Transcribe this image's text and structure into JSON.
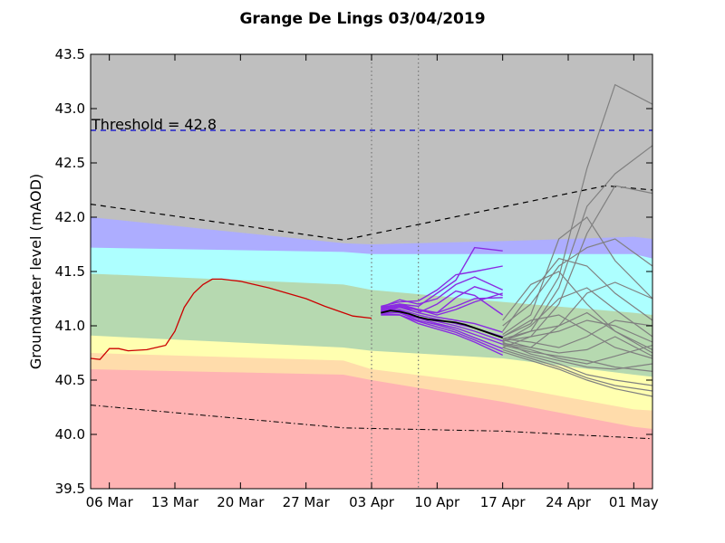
{
  "chart_data": {
    "type": "line",
    "title": "Grange De Lings 03/04/2019",
    "ylabel": "Groundwater level (mAOD)",
    "xlabel": "",
    "ylim": [
      39.5,
      43.5
    ],
    "xlim": [
      "2019-03-04",
      "2019-05-03"
    ],
    "yticks": [
      "39.5",
      "40.0",
      "40.5",
      "41.0",
      "41.5",
      "42.0",
      "42.5",
      "43.0",
      "43.5"
    ],
    "xticks": [
      {
        "date": "2019-03-06",
        "label": "06 Mar"
      },
      {
        "date": "2019-03-13",
        "label": "13 Mar"
      },
      {
        "date": "2019-03-20",
        "label": "20 Mar"
      },
      {
        "date": "2019-03-27",
        "label": "27 Mar"
      },
      {
        "date": "2019-04-03",
        "label": "03 Apr"
      },
      {
        "date": "2019-04-10",
        "label": "10 Apr"
      },
      {
        "date": "2019-04-17",
        "label": "17 Apr"
      },
      {
        "date": "2019-04-24",
        "label": "24 Apr"
      },
      {
        "date": "2019-05-01",
        "label": "01 May"
      }
    ],
    "grid": false,
    "threshold": {
      "value": 42.8,
      "label": "Threshold = 42.8",
      "color": "#0000cc"
    },
    "vlines": [
      "2019-04-03",
      "2019-04-08"
    ],
    "band_x": [
      "2019-03-04",
      "2019-03-31",
      "2019-04-03",
      "2019-04-17",
      "2019-05-01",
      "2019-05-03"
    ],
    "bands": [
      {
        "name": "red",
        "color": "#ffb3b3",
        "upper": [
          40.6,
          40.55,
          40.5,
          40.3,
          40.07,
          40.05
        ]
      },
      {
        "name": "orange",
        "color": "#ffdcab",
        "upper": [
          40.75,
          40.68,
          40.6,
          40.45,
          40.23,
          40.22
        ]
      },
      {
        "name": "yellow",
        "color": "#ffffb0",
        "upper": [
          40.91,
          40.8,
          40.77,
          40.7,
          40.55,
          40.53
        ]
      },
      {
        "name": "green",
        "color": "#b6d9b0",
        "upper": [
          41.48,
          41.38,
          41.33,
          41.22,
          41.12,
          41.1
        ]
      },
      {
        "name": "cyan",
        "color": "#adffff",
        "upper": [
          41.72,
          41.68,
          41.66,
          41.66,
          41.66,
          41.62
        ]
      },
      {
        "name": "blue",
        "color": "#adadff",
        "upper": [
          42.0,
          41.76,
          41.75,
          41.78,
          41.82,
          41.8
        ]
      },
      {
        "name": "grey",
        "color": "#bfbfbf",
        "upper": [
          43.5,
          43.5,
          43.5,
          43.5,
          43.5,
          43.5
        ]
      }
    ],
    "upper_envelope": {
      "x": [
        "2019-03-04",
        "2019-03-31",
        "2019-04-28",
        "2019-05-03"
      ],
      "y": [
        42.12,
        41.79,
        42.29,
        42.25
      ],
      "color": "#000000"
    },
    "lower_envelope": {
      "x": [
        "2019-03-04",
        "2019-03-31",
        "2019-04-17",
        "2019-05-03"
      ],
      "y": [
        40.27,
        40.06,
        40.03,
        39.96
      ],
      "color": "#000000"
    },
    "observed": {
      "color": "#cc0000",
      "x": [
        "2019-03-04",
        "2019-03-05",
        "2019-03-06",
        "2019-03-07",
        "2019-03-08",
        "2019-03-10",
        "2019-03-12",
        "2019-03-13",
        "2019-03-14",
        "2019-03-15",
        "2019-03-16",
        "2019-03-17",
        "2019-03-18",
        "2019-03-19",
        "2019-03-20",
        "2019-03-21",
        "2019-03-23",
        "2019-03-25",
        "2019-03-27",
        "2019-03-29",
        "2019-03-31",
        "2019-04-01",
        "2019-04-03"
      ],
      "y": [
        40.7,
        40.69,
        40.79,
        40.79,
        40.77,
        40.78,
        40.82,
        40.95,
        41.17,
        41.3,
        41.38,
        41.43,
        41.43,
        41.42,
        41.41,
        41.39,
        41.35,
        41.3,
        41.25,
        41.18,
        41.12,
        41.09,
        41.07
      ]
    },
    "median_forecast": {
      "color": "#000000",
      "x": [
        "2019-04-04",
        "2019-04-05",
        "2019-04-06",
        "2019-04-07",
        "2019-04-08",
        "2019-04-09",
        "2019-04-10",
        "2019-04-11",
        "2019-04-12",
        "2019-04-13",
        "2019-04-14",
        "2019-04-15",
        "2019-04-16",
        "2019-04-17"
      ],
      "y": [
        41.12,
        41.14,
        41.13,
        41.11,
        41.08,
        41.06,
        41.05,
        41.04,
        41.03,
        41.01,
        40.98,
        40.95,
        40.92,
        40.89
      ]
    },
    "short_forecasts": {
      "color": "#8a2be2",
      "x": [
        "2019-04-04",
        "2019-04-06",
        "2019-04-08",
        "2019-04-10",
        "2019-04-12",
        "2019-04-14",
        "2019-04-17"
      ],
      "series": [
        [
          41.1,
          41.1,
          41.02,
          40.97,
          40.92,
          40.85,
          40.73
        ],
        [
          41.11,
          41.1,
          41.04,
          40.99,
          40.94,
          40.87,
          40.76
        ],
        [
          41.12,
          41.12,
          41.05,
          41.01,
          40.96,
          40.89,
          40.79
        ],
        [
          41.12,
          41.12,
          41.07,
          41.02,
          40.98,
          40.92,
          40.83
        ],
        [
          41.13,
          41.14,
          41.08,
          41.04,
          41.0,
          40.95,
          40.86
        ],
        [
          41.14,
          41.15,
          41.1,
          41.06,
          41.02,
          40.98,
          40.9
        ],
        [
          41.15,
          41.17,
          41.12,
          41.08,
          41.05,
          41.02,
          40.94
        ],
        [
          41.16,
          41.2,
          41.15,
          41.12,
          41.18,
          41.25,
          41.26
        ],
        [
          41.17,
          41.24,
          41.2,
          41.25,
          41.38,
          41.45,
          41.33
        ],
        [
          41.18,
          41.22,
          41.23,
          41.33,
          41.47,
          41.5,
          41.55
        ],
        [
          41.17,
          41.2,
          41.18,
          41.3,
          41.42,
          41.72,
          41.69
        ],
        [
          41.13,
          41.17,
          41.15,
          41.1,
          41.15,
          41.22,
          41.3
        ],
        [
          41.14,
          41.18,
          41.12,
          41.2,
          41.32,
          41.28,
          41.1
        ],
        [
          41.15,
          41.19,
          41.14,
          41.12,
          41.26,
          41.36,
          41.28
        ]
      ]
    },
    "long_forecasts": {
      "color": "#808080",
      "x": [
        "2019-04-17",
        "2019-04-20",
        "2019-04-23",
        "2019-04-26",
        "2019-04-29",
        "2019-05-03"
      ],
      "series": [
        [
          40.9,
          41.02,
          41.45,
          42.45,
          43.22,
          43.04
        ],
        [
          40.88,
          40.95,
          41.35,
          42.1,
          42.4,
          42.66
        ],
        [
          40.86,
          40.9,
          41.2,
          41.85,
          42.29,
          42.22
        ],
        [
          40.92,
          41.1,
          41.8,
          42.0,
          41.6,
          41.25
        ],
        [
          41.0,
          41.2,
          41.55,
          41.72,
          41.8,
          41.55
        ],
        [
          40.95,
          41.3,
          41.62,
          41.55,
          41.3,
          41.05
        ],
        [
          41.05,
          41.38,
          41.5,
          41.2,
          40.95,
          40.78
        ],
        [
          40.85,
          41.0,
          41.25,
          41.35,
          41.15,
          40.9
        ],
        [
          40.8,
          40.9,
          40.95,
          41.05,
          41.0,
          40.85
        ],
        [
          40.88,
          40.85,
          40.8,
          40.9,
          41.05,
          41.0
        ],
        [
          40.83,
          40.78,
          40.7,
          40.65,
          40.72,
          40.82
        ],
        [
          40.87,
          40.8,
          40.75,
          40.78,
          40.9,
          40.72
        ],
        [
          40.85,
          40.74,
          40.68,
          40.62,
          40.6,
          40.65
        ],
        [
          40.8,
          40.72,
          40.65,
          40.55,
          40.5,
          40.45
        ],
        [
          40.78,
          40.7,
          40.62,
          40.52,
          40.45,
          40.4
        ],
        [
          40.76,
          40.68,
          40.6,
          40.5,
          40.42,
          40.35
        ],
        [
          40.82,
          40.76,
          40.72,
          40.68,
          40.62,
          40.58
        ],
        [
          40.9,
          41.05,
          41.1,
          40.95,
          40.8,
          40.7
        ],
        [
          40.86,
          40.95,
          41.0,
          41.12,
          40.95,
          40.75
        ],
        [
          40.84,
          40.8,
          41.0,
          41.3,
          41.4,
          41.25
        ]
      ]
    }
  }
}
